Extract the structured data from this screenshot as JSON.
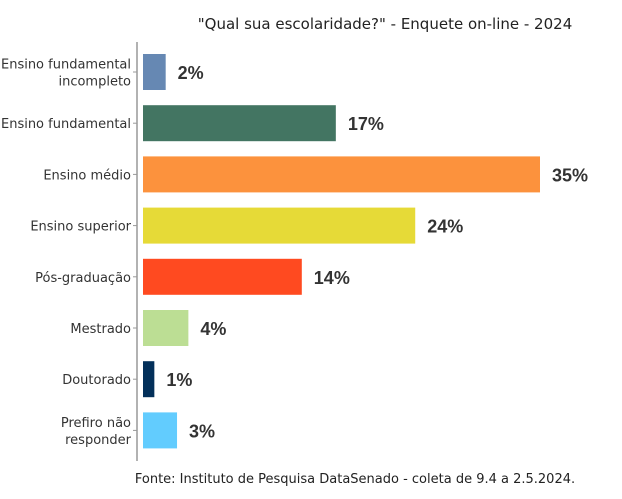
{
  "chart_data": {
    "type": "bar",
    "orientation": "horizontal",
    "title": "\"Qual sua escolaridade?\" - Enquete on-line - 2024",
    "caption": "Fonte: Instituto de Pesquisa DataSenado - coleta de 9.4 a 2.5.2024.",
    "categories": [
      [
        "Ensino fundamental",
        "incompleto"
      ],
      [
        "Ensino fundamental"
      ],
      [
        "Ensino médio"
      ],
      [
        "Ensino superior"
      ],
      [
        "Pós-graduação"
      ],
      [
        "Mestrado"
      ],
      [
        "Doutorado"
      ],
      [
        "Prefiro não",
        "responder"
      ]
    ],
    "values": [
      2,
      17,
      35,
      24,
      14,
      4,
      1,
      3
    ],
    "value_labels": [
      "2%",
      "17%",
      "35%",
      "24%",
      "14%",
      "4%",
      "1%",
      "3%"
    ],
    "colors": [
      "#6688b3",
      "#437562",
      "#fc923d",
      "#e6da37",
      "#ff4a20",
      "#bcde94",
      "#03305a",
      "#62ccfe"
    ],
    "xlim": [
      0,
      35
    ],
    "grid": false,
    "legend": "none"
  }
}
